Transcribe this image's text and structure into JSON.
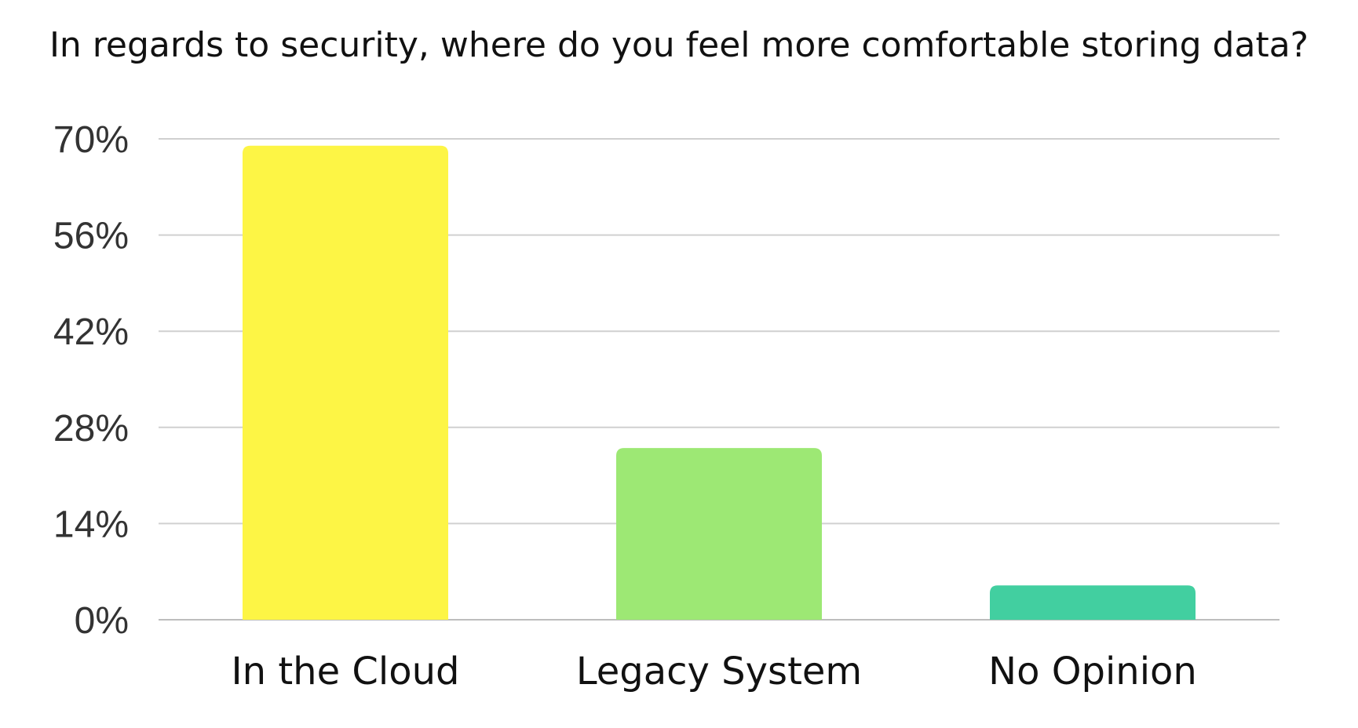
{
  "chart_data": {
    "type": "bar",
    "title": "In regards to security, where do you feel more comfortable storing data?",
    "xlabel": "",
    "ylabel": "",
    "categories": [
      "In the Cloud",
      "Legacy System",
      "No Opinion"
    ],
    "values": [
      69,
      25,
      5
    ],
    "colors": [
      "#fdf545",
      "#9de874",
      "#42cfa0"
    ],
    "ylim": [
      0,
      70
    ],
    "yticks": [
      0,
      14,
      28,
      42,
      56,
      70
    ],
    "ytick_labels": [
      "0%",
      "14%",
      "28%",
      "42%",
      "56%",
      "70%"
    ],
    "grid": true,
    "legend": "none"
  }
}
